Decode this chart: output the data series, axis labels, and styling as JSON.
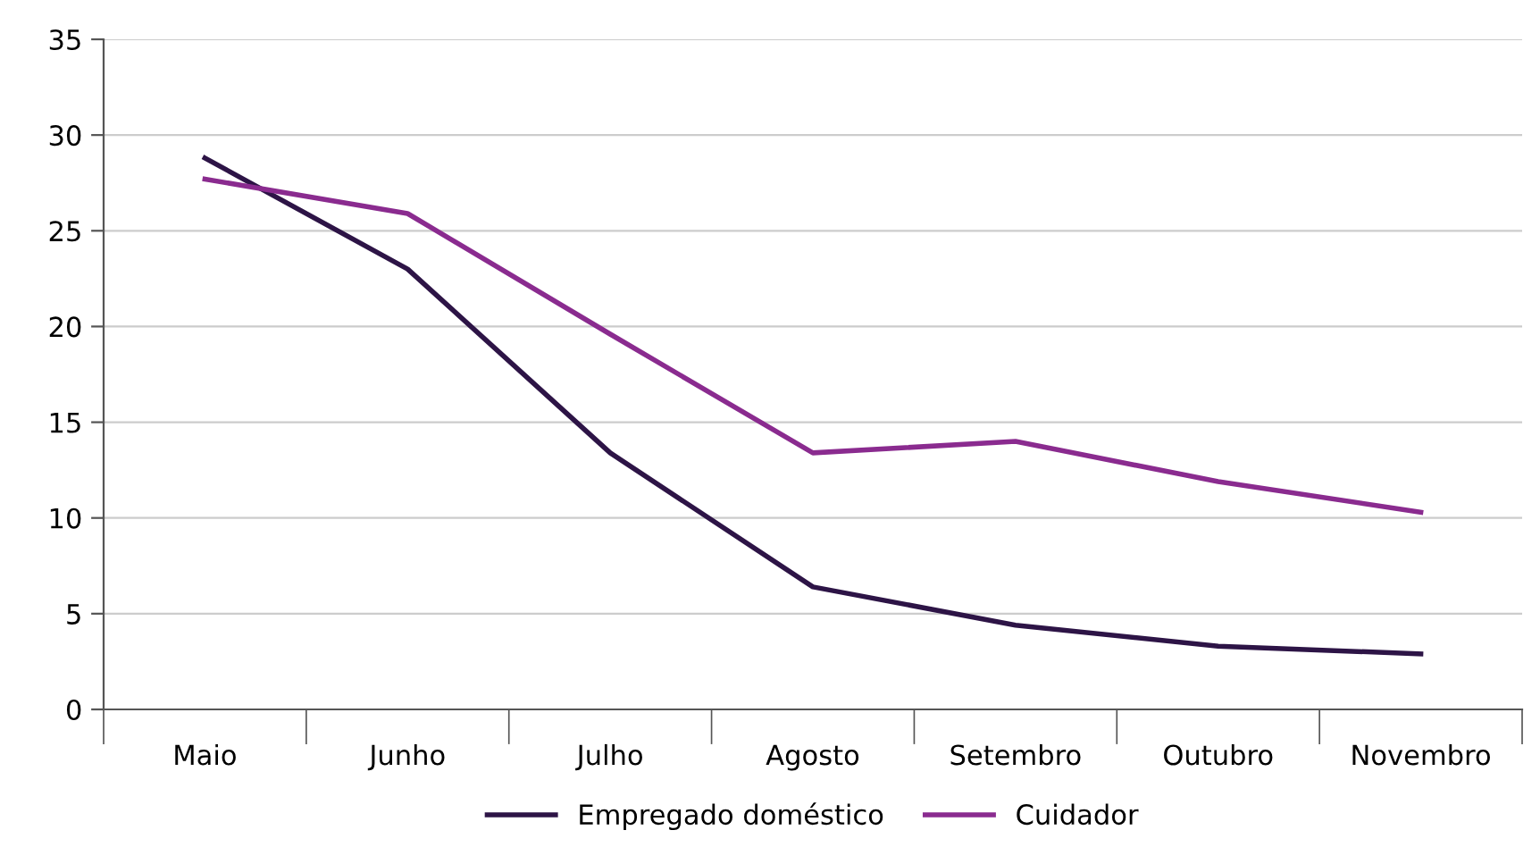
{
  "chart_data": {
    "type": "line",
    "categories": [
      "Maio",
      "Junho",
      "Julho",
      "Agosto",
      "Setembro",
      "Outubro",
      "Novembro"
    ],
    "series": [
      {
        "name": "Empregado doméstico",
        "color": "#2d1446",
        "values": [
          28.8,
          23.0,
          13.4,
          6.4,
          4.4,
          3.3,
          2.9
        ]
      },
      {
        "name": "Cuidador",
        "color": "#8a2b8f",
        "values": [
          27.7,
          25.9,
          19.6,
          13.4,
          14.0,
          11.9,
          10.3
        ]
      }
    ],
    "ylim": [
      0,
      35
    ],
    "yticks": [
      0,
      5,
      10,
      15,
      20,
      25,
      30,
      35
    ],
    "grid": "y",
    "legend": "bottom",
    "marker": "none",
    "line_style": "solid"
  }
}
